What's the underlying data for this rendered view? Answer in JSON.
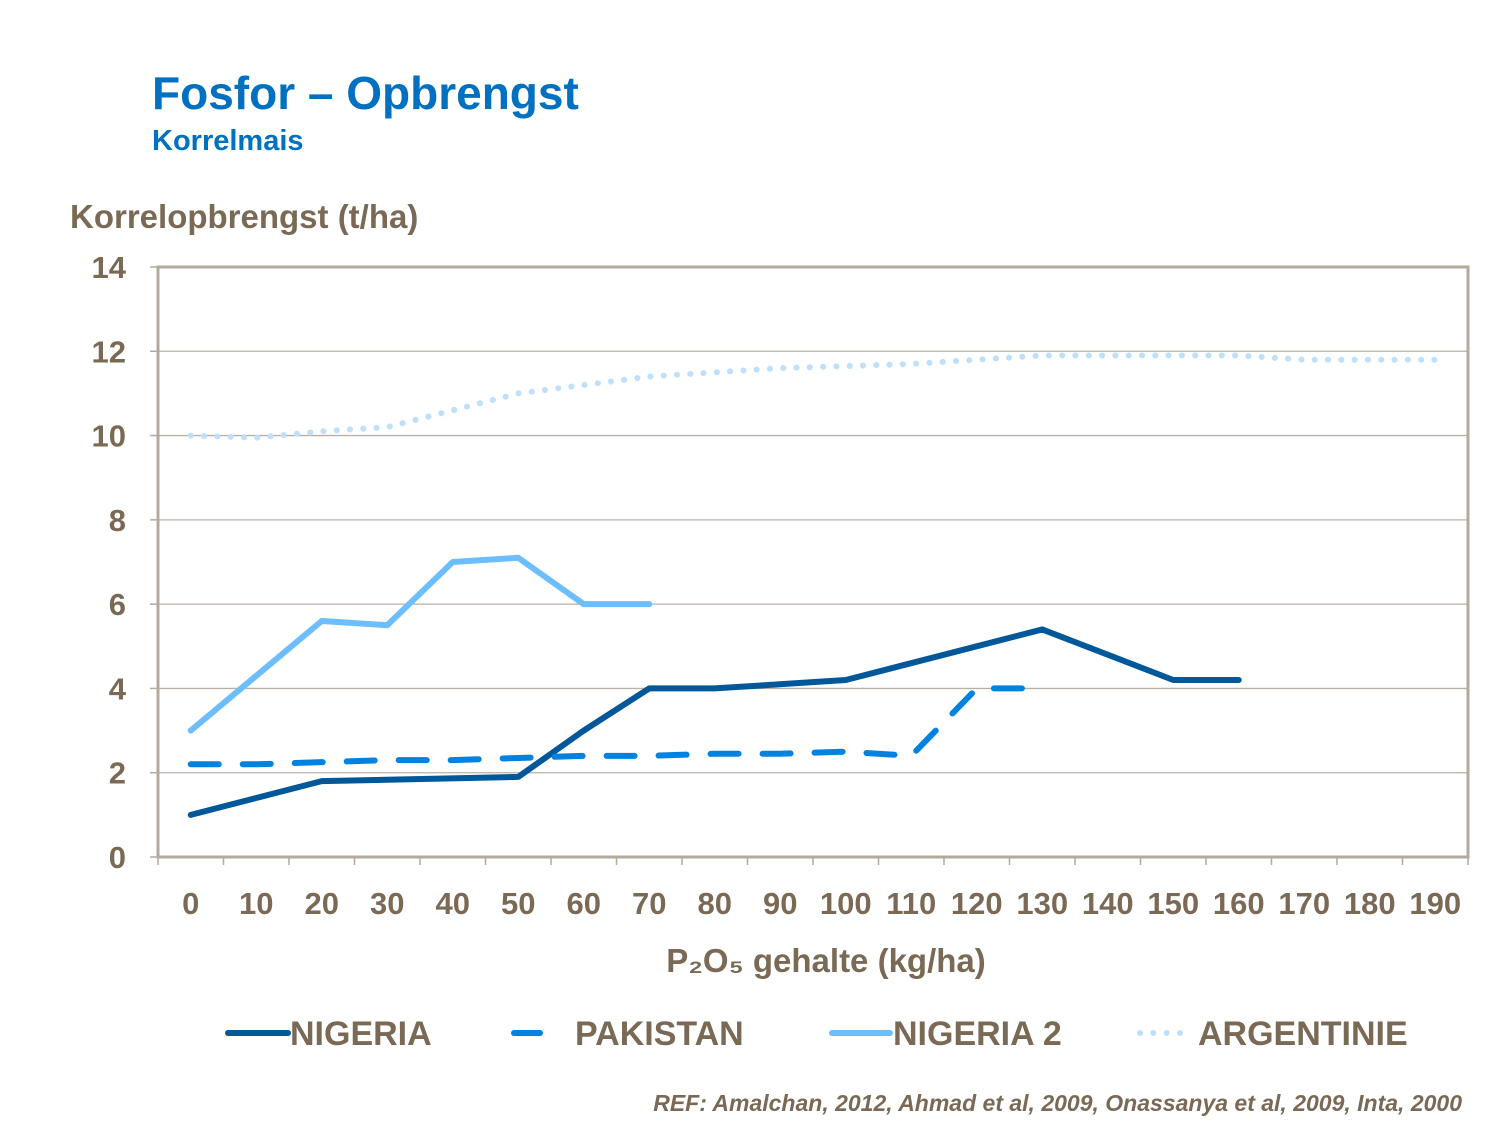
{
  "title": "Fosfor – Opbrengst",
  "subtitle": "Korrelmais",
  "reference": "REF: Amalchan,  2012, Ahmad et al, 2009, Onassanya et al, 2009, Inta, 2000",
  "colors": {
    "text": "#7A6A55",
    "title": "#0070C0",
    "axis": "#B3A99C",
    "grid": "#B9B0A5"
  },
  "chart_data": {
    "type": "line",
    "ylabel": "Korrelopbrengst (t/ha)",
    "xlabel": "P₂O₅ gehalte (kg/ha)",
    "categories": [
      "0",
      "10",
      "20",
      "30",
      "40",
      "50",
      "60",
      "70",
      "80",
      "90",
      "100",
      "110",
      "120",
      "130",
      "140",
      "150",
      "160",
      "170",
      "180",
      "190"
    ],
    "ylim": [
      0,
      14
    ],
    "yticks": [
      "0",
      "2",
      "4",
      "6",
      "8",
      "10",
      "12",
      "14"
    ],
    "grid": true,
    "legend": "bottom",
    "series": [
      {
        "name": "NIGERIA",
        "color": "#00579A",
        "style": "solid",
        "values": [
          1,
          null,
          1.8,
          null,
          null,
          1.9,
          3,
          4,
          4,
          null,
          4.2,
          null,
          null,
          5.4,
          null,
          4.2,
          4.2,
          null,
          null,
          null
        ]
      },
      {
        "name": "PAKISTAN",
        "color": "#0082E0",
        "style": "dashed",
        "values": [
          2.2,
          2.2,
          2.25,
          2.3,
          2.3,
          2.35,
          2.4,
          2.4,
          2.45,
          2.45,
          2.5,
          2.4,
          4,
          4,
          null,
          null,
          null,
          null,
          null,
          null
        ]
      },
      {
        "name": "NIGERIA 2",
        "color": "#6CBEFF",
        "style": "solid",
        "values": [
          3,
          null,
          5.6,
          5.5,
          7,
          7.1,
          6,
          6,
          null,
          null,
          null,
          null,
          null,
          null,
          null,
          null,
          null,
          null,
          null,
          null
        ]
      },
      {
        "name": "ARGENTINIE",
        "color": "#BEE0FB",
        "style": "dotted",
        "values": [
          10,
          9.95,
          10.1,
          10.2,
          10.6,
          11,
          11.2,
          11.4,
          11.5,
          11.6,
          11.65,
          11.7,
          11.8,
          11.9,
          11.9,
          11.9,
          11.9,
          11.8,
          11.8,
          11.8
        ]
      }
    ]
  }
}
